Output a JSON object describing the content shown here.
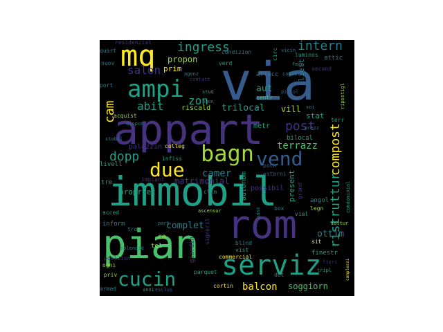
{
  "palette": {
    "background": "#000000",
    "page": "#ffffff",
    "purple": "#46327e",
    "blue": "#365c8d",
    "teal": "#277f8e",
    "green": "#1fa187",
    "lightgreen": "#4ac16d",
    "lime": "#9fda3a",
    "yellow": "#fde725"
  },
  "words": [
    {
      "text": "via",
      "color": "blue"
    },
    {
      "text": "appart",
      "color": "purple"
    },
    {
      "text": "immobil",
      "color": "green"
    },
    {
      "text": "pian",
      "color": "lightgreen"
    },
    {
      "text": "rom",
      "color": "purple"
    },
    {
      "text": "serviz",
      "color": "green"
    },
    {
      "text": "mq",
      "color": "yellow"
    },
    {
      "text": "ampi",
      "color": "green"
    },
    {
      "text": "bagn",
      "color": "lime"
    },
    {
      "text": "vend",
      "color": "blue"
    },
    {
      "text": "due",
      "color": "yellow"
    },
    {
      "text": "cucin",
      "color": "green"
    },
    {
      "text": "ingress",
      "color": "green"
    },
    {
      "text": "intern",
      "color": "teal"
    },
    {
      "text": "dopp",
      "color": "green"
    },
    {
      "text": "compost",
      "color": "yellow"
    },
    {
      "text": "ristruttur",
      "color": "green"
    },
    {
      "text": "post",
      "color": "purple"
    },
    {
      "text": "cam",
      "color": "yellow"
    },
    {
      "text": "salon",
      "color": "purple"
    },
    {
      "text": "abit",
      "color": "green"
    },
    {
      "text": "zon",
      "color": "green"
    },
    {
      "text": "camer",
      "color": "teal"
    },
    {
      "text": "terrazz",
      "color": "lightgreen"
    },
    {
      "text": "balcon",
      "color": "yellow"
    },
    {
      "text": "soggiorn",
      "color": "lightgreen"
    },
    {
      "text": "complet",
      "color": "teal"
    },
    {
      "text": "ottim",
      "color": "teal"
    },
    {
      "text": "trilocal",
      "color": "green"
    },
    {
      "text": "matrimonial",
      "color": "purple"
    },
    {
      "text": "propon",
      "color": "lime"
    },
    {
      "text": "aut",
      "color": "green"
    },
    {
      "text": "vill",
      "color": "lime"
    },
    {
      "text": "stat",
      "color": "green"
    },
    {
      "text": "liett",
      "color": "teal"
    },
    {
      "text": "luminos",
      "color": "green"
    },
    {
      "text": "prim",
      "color": "yellow"
    },
    {
      "text": "propriet",
      "color": "green"
    },
    {
      "text": "present",
      "color": "green"
    },
    {
      "text": "possibil",
      "color": "purple"
    },
    {
      "text": "autonom",
      "color": "green"
    },
    {
      "text": "riscald",
      "color": "lime"
    },
    {
      "text": "palazzin",
      "color": "purple"
    },
    {
      "text": "metr",
      "color": "green"
    },
    {
      "text": "bilocal",
      "color": "green"
    },
    {
      "text": "condizion",
      "color": "teal"
    },
    {
      "text": "acquist",
      "color": "lime"
    },
    {
      "text": "affacc",
      "color": "teal"
    },
    {
      "text": "centr",
      "color": "lightgreen"
    },
    {
      "text": "terr",
      "color": "green"
    },
    {
      "text": "nuov",
      "color": "teal"
    },
    {
      "text": "port",
      "color": "teal"
    },
    {
      "text": "quart",
      "color": "teal"
    },
    {
      "text": "verd",
      "color": "green"
    },
    {
      "text": "second",
      "color": "purple"
    },
    {
      "text": "attic",
      "color": "teal"
    },
    {
      "text": "infiss",
      "color": "green"
    },
    {
      "text": "colleg",
      "color": "yellow"
    },
    {
      "text": "livell",
      "color": "green"
    },
    {
      "text": "tre",
      "color": "green"
    },
    {
      "text": "grand",
      "color": "purple"
    },
    {
      "text": "angol",
      "color": "teal"
    },
    {
      "text": "legn",
      "color": "lime"
    },
    {
      "text": "box",
      "color": "teal"
    },
    {
      "text": "esterni",
      "color": "blue"
    },
    {
      "text": "poch",
      "color": "blue"
    },
    {
      "text": "blind",
      "color": "teal"
    },
    {
      "text": "vist",
      "color": "green"
    },
    {
      "text": "commercial",
      "color": "yellow"
    },
    {
      "text": "inform",
      "color": "teal"
    },
    {
      "text": "ca",
      "color": "lime"
    },
    {
      "text": "tel",
      "color": "lime"
    },
    {
      "text": "signoril",
      "color": "purple"
    },
    {
      "text": "giardin",
      "color": "purple"
    },
    {
      "text": "cortin",
      "color": "yellow"
    },
    {
      "text": "parquet",
      "color": "green"
    },
    {
      "text": "ogni",
      "color": "lime"
    },
    {
      "text": "armad",
      "color": "teal"
    },
    {
      "text": "sit",
      "color": "yellow"
    },
    {
      "text": "finestr",
      "color": "green"
    },
    {
      "text": "condominial",
      "color": "green"
    },
    {
      "text": "cottur",
      "color": "lime"
    },
    {
      "text": "dot",
      "color": "teal"
    },
    {
      "text": "trov",
      "color": "teal"
    },
    {
      "text": "part",
      "color": "teal"
    },
    {
      "text": "impiant",
      "color": "purple"
    },
    {
      "text": "stabil",
      "color": "teal"
    },
    {
      "text": "dispon",
      "color": "teal"
    },
    {
      "text": "acced",
      "color": "green"
    },
    {
      "text": "priv",
      "color": "lime"
    },
    {
      "text": "residenzial",
      "color": "purple"
    },
    {
      "text": "vicin",
      "color": "teal"
    },
    {
      "text": "fern",
      "color": "green"
    },
    {
      "text": "comod",
      "color": "teal"
    },
    {
      "text": "piccol",
      "color": "blue"
    },
    {
      "text": "soi",
      "color": "teal"
    },
    {
      "text": "ripostigl",
      "color": "lime"
    },
    {
      "text": "prezz",
      "color": "teal"
    },
    {
      "text": "contatt",
      "color": "purple"
    },
    {
      "text": "agenz",
      "color": "teal"
    },
    {
      "text": "stud",
      "color": "green"
    },
    {
      "text": "buon",
      "color": "teal"
    },
    {
      "text": "splendid",
      "color": "teal"
    },
    {
      "text": "vial",
      "color": "green"
    },
    {
      "text": "circ",
      "color": "green"
    },
    {
      "text": "tripl",
      "color": "green"
    },
    {
      "text": "complessi",
      "color": "yellow"
    },
    {
      "text": "fiori",
      "color": "purple"
    },
    {
      "text": "pass",
      "color": "teal"
    },
    {
      "text": "anni",
      "color": "green"
    },
    {
      "text": "esclus",
      "color": "blue"
    },
    {
      "text": "posizion",
      "color": "purple"
    },
    {
      "text": "clim",
      "color": "teal"
    },
    {
      "text": "ascensor",
      "color": "lime"
    }
  ]
}
